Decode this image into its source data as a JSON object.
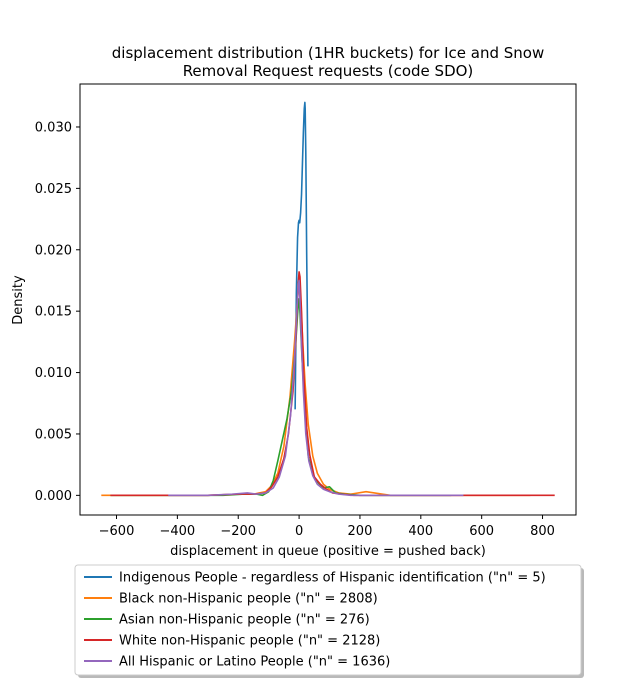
{
  "chart_data": {
    "type": "line",
    "title_lines": [
      "displacement distribution (1HR buckets) for Ice and Snow",
      "Removal Request requests (code SDO)"
    ],
    "xlabel": "displacement in queue (positive = pushed back)",
    "ylabel": "Density",
    "xlim": [
      -720,
      910
    ],
    "ylim": [
      -0.0016,
      0.0335
    ],
    "x_ticks": [
      -600,
      -400,
      -200,
      0,
      200,
      400,
      600,
      800
    ],
    "x_tick_labels": [
      "−600",
      "−400",
      "−200",
      "0",
      "200",
      "400",
      "600",
      "800"
    ],
    "y_ticks": [
      0.0,
      0.005,
      0.01,
      0.015,
      0.02,
      0.025,
      0.03
    ],
    "y_tick_labels": [
      "0.000",
      "0.005",
      "0.010",
      "0.015",
      "0.020",
      "0.025",
      "0.030"
    ],
    "grid": false,
    "legend_position": "below",
    "series": [
      {
        "name": "Indigenous People - regardless of Hispanic identification (\"n\" = 5)",
        "color": "#1f77b4",
        "x": [
          -13,
          -9,
          -5,
          -2,
          0,
          2,
          5,
          8,
          11,
          14,
          17,
          19,
          20,
          22,
          25,
          29
        ],
        "y": [
          0.007,
          0.0165,
          0.021,
          0.0222,
          0.0224,
          0.0222,
          0.023,
          0.0245,
          0.027,
          0.0295,
          0.0315,
          0.032,
          0.0315,
          0.028,
          0.0195,
          0.0105
        ]
      },
      {
        "name": "Black non-Hispanic people (\"n\" = 2808)",
        "color": "#ff7f0e",
        "x": [
          -650,
          -500,
          -300,
          -200,
          -150,
          -110,
          -90,
          -70,
          -50,
          -30,
          -15,
          -5,
          0,
          5,
          12,
          20,
          30,
          45,
          60,
          80,
          100,
          130,
          170,
          220,
          300,
          450,
          600,
          760
        ],
        "y": [
          0.0,
          0.0,
          0.0,
          0.0001,
          0.0001,
          0.0003,
          0.0008,
          0.0018,
          0.004,
          0.008,
          0.0125,
          0.016,
          0.0172,
          0.016,
          0.0125,
          0.009,
          0.0058,
          0.0032,
          0.0018,
          0.0009,
          0.0005,
          0.0002,
          0.0001,
          0.0003,
          0.0,
          0.0,
          0.0,
          0.0
        ]
      },
      {
        "name": "Asian non-Hispanic people (\"n\" = 276)",
        "color": "#2ca02c",
        "x": [
          -620,
          -400,
          -250,
          -180,
          -140,
          -120,
          -100,
          -85,
          -70,
          -55,
          -40,
          -25,
          -12,
          -3,
          0,
          3,
          10,
          20,
          30,
          45,
          60,
          80,
          100,
          120,
          150,
          200,
          300,
          500
        ],
        "y": [
          0.0,
          0.0,
          0.0,
          0.0001,
          0.0001,
          0.0,
          0.0003,
          0.0012,
          0.0028,
          0.0045,
          0.0062,
          0.0085,
          0.012,
          0.0155,
          0.016,
          0.0148,
          0.011,
          0.0065,
          0.0032,
          0.0017,
          0.0011,
          0.0006,
          0.0007,
          0.0002,
          0.0001,
          0.0,
          0.0,
          0.0
        ]
      },
      {
        "name": "White non-Hispanic people (\"n\" = 2128)",
        "color": "#d62728",
        "x": [
          -620,
          -450,
          -300,
          -200,
          -150,
          -110,
          -90,
          -70,
          -50,
          -35,
          -20,
          -10,
          -3,
          0,
          3,
          8,
          15,
          25,
          35,
          50,
          70,
          90,
          110,
          140,
          180,
          250,
          400,
          600,
          840
        ],
        "y": [
          0.0,
          0.0,
          0.0,
          0.0001,
          0.0001,
          0.0002,
          0.0007,
          0.0015,
          0.003,
          0.005,
          0.0085,
          0.013,
          0.0172,
          0.0182,
          0.0178,
          0.015,
          0.01,
          0.0055,
          0.0033,
          0.0015,
          0.0009,
          0.0005,
          0.0002,
          0.0001,
          0.0,
          0.0,
          0.0,
          0.0,
          0.0
        ]
      },
      {
        "name": "All Hispanic or Latino People (\"n\" = 1636)",
        "color": "#9467bd",
        "x": [
          -430,
          -300,
          -220,
          -170,
          -140,
          -110,
          -85,
          -65,
          -45,
          -28,
          -15,
          -7,
          -2,
          0,
          2,
          7,
          14,
          22,
          32,
          45,
          60,
          80,
          100,
          130,
          170,
          250,
          400,
          540
        ],
        "y": [
          0.0,
          0.0,
          0.0001,
          0.0002,
          0.0001,
          0.0002,
          0.0006,
          0.0015,
          0.0032,
          0.0065,
          0.011,
          0.0152,
          0.0172,
          0.0175,
          0.0165,
          0.013,
          0.0085,
          0.005,
          0.0028,
          0.0016,
          0.0009,
          0.0005,
          0.0003,
          0.0001,
          0.0,
          0.0,
          0.0,
          0.0
        ]
      }
    ]
  }
}
